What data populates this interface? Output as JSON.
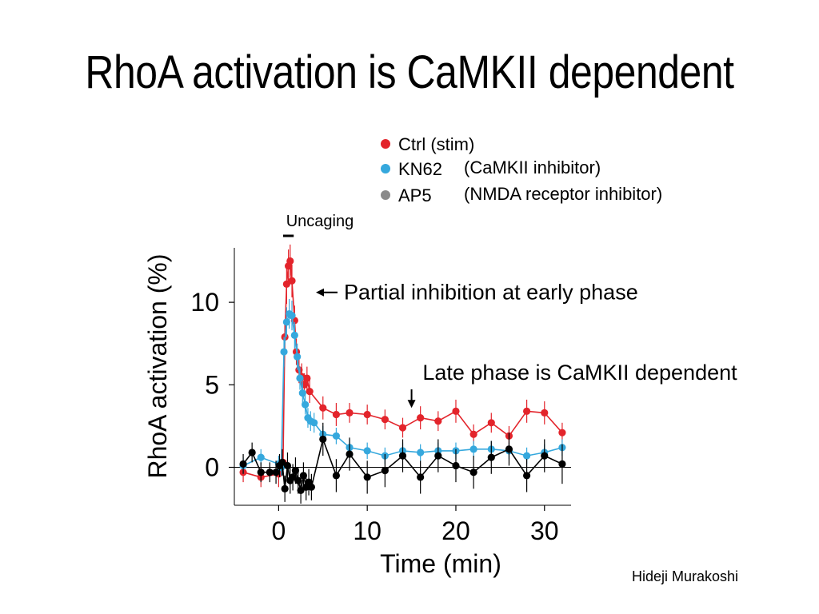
{
  "slide": {
    "title": "RhoA activation is CaMKII dependent",
    "credit": "Hideji Murakoshi"
  },
  "colors": {
    "ctrl": "#e3242b",
    "kn62": "#35a8dd",
    "ap5_legend": "#8a8a8a",
    "ap5_line": "#000000"
  },
  "chart_data": {
    "type": "line",
    "xlabel": "Time (min)",
    "ylabel": "RhoA activation (%)",
    "xlim": [
      -5,
      33
    ],
    "ylim": [
      -2.3,
      13.3
    ],
    "xticks": [
      0,
      10,
      20,
      30
    ],
    "yticks": [
      0,
      5,
      10
    ],
    "grid": false,
    "zero_line": true,
    "legend": {
      "placement": "top-right",
      "entries": [
        {
          "key": "ctrl",
          "label": "Ctrl (stim)",
          "note": ""
        },
        {
          "key": "kn62",
          "label": "KN62",
          "note": "(CaMKII inhibitor)"
        },
        {
          "key": "ap5",
          "label": "AP5",
          "note": "(NMDA receptor inhibitor)"
        }
      ]
    },
    "annotations": {
      "uncaging": {
        "label": "Uncaging",
        "x_start": 0.5,
        "x_end": 1.7
      },
      "early": {
        "label": "Partial inhibition at early phase",
        "points_to_y": 10.6
      },
      "late": {
        "label": "Late phase is CaMKII dependent",
        "points_to_x": 15,
        "points_to_y": 3.6
      }
    },
    "series": [
      {
        "key": "ctrl",
        "name": "Ctrl (stim)",
        "x": [
          -4,
          -2,
          0,
          0.5,
          0.7,
          0.9,
          1.1,
          1.3,
          1.5,
          1.8,
          2.0,
          2.3,
          2.6,
          2.9,
          3.2,
          3.5,
          5,
          6.5,
          8,
          10,
          12,
          14,
          16,
          18,
          20,
          22,
          24,
          26,
          28,
          30,
          32
        ],
        "y": [
          -0.3,
          -0.6,
          -0.4,
          0.3,
          7.9,
          11.1,
          12.2,
          12.5,
          11.3,
          8.9,
          7.0,
          5.9,
          5.5,
          5.0,
          5.4,
          4.6,
          3.6,
          3.2,
          3.3,
          3.2,
          2.9,
          2.4,
          3.0,
          2.8,
          3.4,
          2.0,
          2.7,
          1.9,
          3.4,
          3.3,
          2.1
        ],
        "err": [
          0.6,
          0.6,
          0.8,
          0.5,
          1.0,
          1.2,
          1.0,
          1.0,
          1.0,
          0.9,
          0.8,
          0.8,
          0.8,
          0.7,
          0.7,
          0.7,
          0.7,
          0.7,
          0.6,
          0.6,
          0.6,
          0.6,
          0.7,
          0.6,
          0.7,
          0.6,
          0.6,
          0.6,
          0.7,
          0.7,
          0.6
        ]
      },
      {
        "key": "kn62",
        "name": "KN62",
        "x": [
          -4,
          -2,
          0,
          0.3,
          0.6,
          0.9,
          1.2,
          1.5,
          1.8,
          2.1,
          2.4,
          2.7,
          3.0,
          3.3,
          3.6,
          4.0,
          5,
          6.5,
          8,
          10,
          12,
          14,
          16,
          18,
          20,
          22,
          24,
          26,
          28,
          30,
          32
        ],
        "y": [
          0.1,
          0.6,
          0.2,
          0.0,
          7.0,
          8.8,
          9.3,
          9.2,
          8.0,
          6.7,
          5.4,
          4.5,
          3.8,
          3.0,
          2.8,
          2.7,
          2.0,
          1.9,
          1.2,
          1.0,
          0.7,
          1.0,
          0.9,
          1.0,
          1.0,
          1.1,
          1.1,
          1.0,
          0.7,
          0.9,
          1.2
        ],
        "err": [
          0.5,
          0.5,
          0.5,
          0.5,
          0.9,
          0.9,
          0.9,
          0.9,
          0.8,
          0.8,
          0.7,
          0.7,
          0.6,
          0.6,
          0.6,
          0.6,
          0.5,
          0.5,
          0.5,
          0.5,
          0.5,
          0.5,
          0.5,
          0.5,
          0.5,
          0.5,
          0.5,
          0.5,
          0.5,
          0.5,
          0.5
        ]
      },
      {
        "key": "ap5",
        "name": "AP5",
        "x": [
          -4,
          -3,
          -2,
          -1,
          -0.3,
          0.1,
          0.4,
          0.7,
          1.0,
          1.3,
          1.6,
          1.9,
          2.2,
          2.5,
          2.8,
          3.1,
          3.4,
          3.7,
          5,
          6.5,
          8,
          10,
          12,
          14,
          16,
          18,
          20,
          22,
          24,
          26,
          28,
          30,
          32
        ],
        "y": [
          0.2,
          0.9,
          -0.3,
          -0.3,
          -0.3,
          0.1,
          0.3,
          -1.3,
          0.1,
          -0.8,
          -0.6,
          -0.2,
          -0.8,
          -1.4,
          -0.5,
          -1.2,
          -0.9,
          -1.2,
          1.7,
          -0.5,
          0.8,
          -0.6,
          -0.2,
          0.7,
          -0.6,
          0.7,
          0.1,
          -0.3,
          0.6,
          1.1,
          -0.5,
          0.7,
          0.2
        ],
        "err": [
          0.6,
          0.6,
          0.6,
          0.6,
          0.7,
          0.7,
          0.8,
          0.8,
          0.8,
          0.8,
          0.8,
          0.8,
          0.8,
          0.8,
          0.8,
          0.8,
          0.8,
          0.8,
          1.0,
          1.0,
          1.0,
          1.0,
          1.0,
          1.0,
          1.0,
          1.0,
          1.0,
          1.0,
          1.0,
          1.0,
          1.0,
          1.0,
          1.2
        ]
      }
    ]
  }
}
